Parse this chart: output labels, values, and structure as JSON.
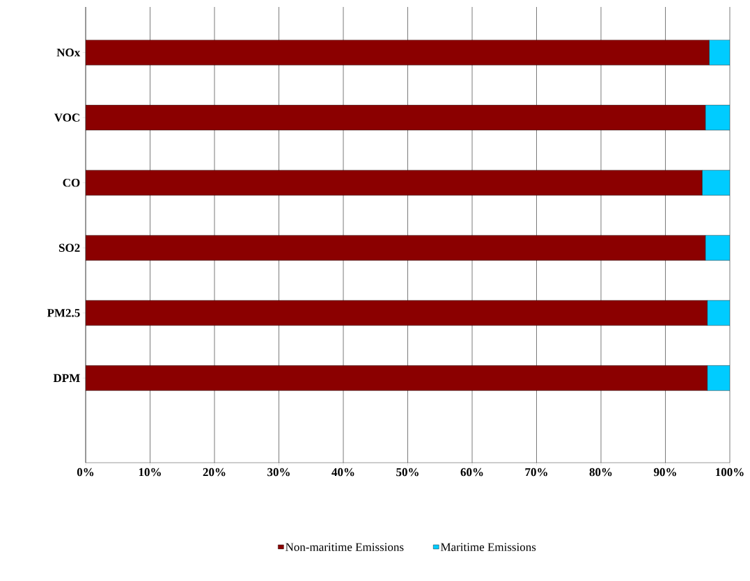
{
  "chart_data": {
    "type": "bar",
    "orientation": "horizontal",
    "stacked": true,
    "categories": [
      "NOx",
      "VOC",
      "CO",
      "SO2",
      "PM2.5",
      "DPM"
    ],
    "series": [
      {
        "name": "Non-maritime Emissions",
        "color": "#8b0000",
        "values": [
          96.8,
          96.2,
          95.7,
          96.2,
          96.5,
          96.5
        ]
      },
      {
        "name": "Maritime Emissions",
        "color": "#00ccff",
        "values": [
          3.2,
          3.8,
          4.3,
          3.8,
          3.5,
          3.5
        ]
      }
    ],
    "xlim": [
      0,
      100
    ],
    "xticks": [
      {
        "value": 0,
        "label": "0%"
      },
      {
        "value": 10,
        "label": "10%"
      },
      {
        "value": 20,
        "label": "20%"
      },
      {
        "value": 30,
        "label": "30%"
      },
      {
        "value": 40,
        "label": "40%"
      },
      {
        "value": 50,
        "label": "50%"
      },
      {
        "value": 60,
        "label": "60%"
      },
      {
        "value": 70,
        "label": "70%"
      },
      {
        "value": 80,
        "label": "80%"
      },
      {
        "value": 90,
        "label": "90%"
      },
      {
        "value": 100,
        "label": "100%"
      }
    ],
    "grid": "x",
    "legend": "bottom"
  }
}
